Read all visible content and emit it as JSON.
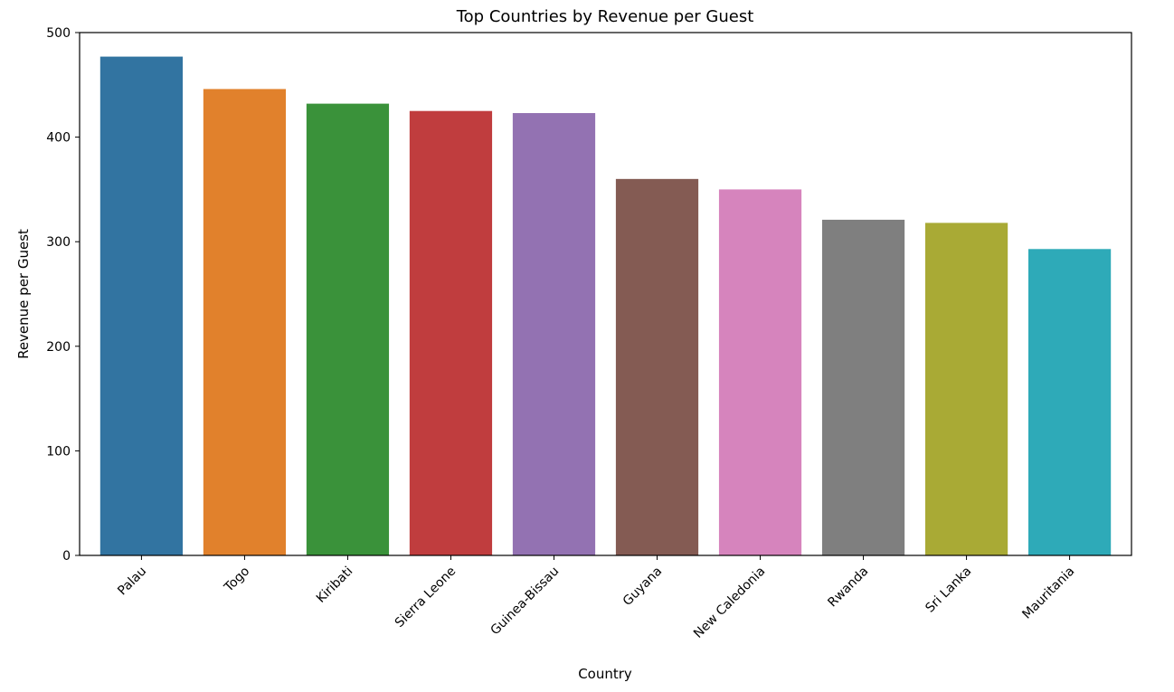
{
  "chart_data": {
    "type": "bar",
    "title": "Top Countries by Revenue per Guest",
    "xlabel": "Country",
    "ylabel": "Revenue per Guest",
    "categories": [
      "Palau",
      "Togo",
      "Kiribati",
      "Sierra Leone",
      "Guinea-Bissau",
      "Guyana",
      "New Caledonia",
      "Rwanda",
      "Sri Lanka",
      "Mauritania"
    ],
    "values": [
      477,
      446,
      432,
      425,
      423,
      360,
      350,
      321,
      318,
      293
    ],
    "colors": [
      "#3274a1",
      "#e1812c",
      "#3a923a",
      "#c03d3e",
      "#9372b2",
      "#845b53",
      "#d684bd",
      "#7f7f7f",
      "#a9aa35",
      "#2eaab8"
    ],
    "ylim": [
      0,
      500
    ],
    "yticks": [
      0,
      100,
      200,
      300,
      400,
      500
    ],
    "grid": false,
    "legend": "none"
  }
}
